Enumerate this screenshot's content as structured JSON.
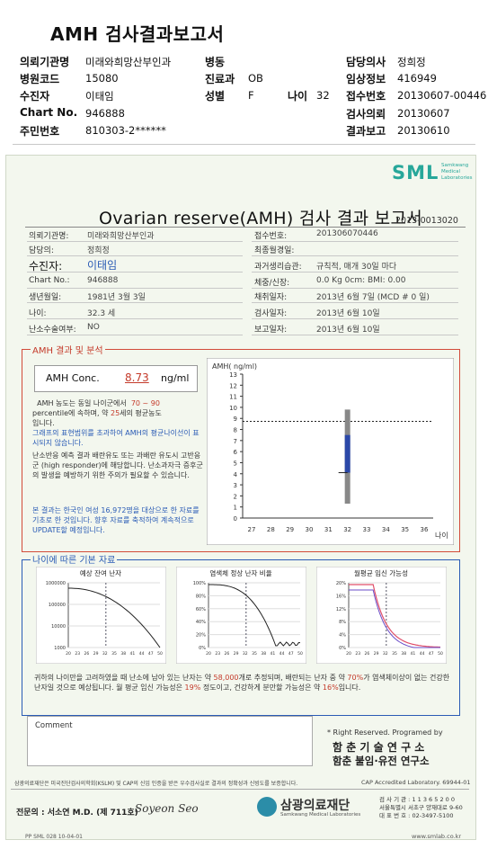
{
  "header": {
    "title": "AMH 검사결과보고서",
    "rows": [
      [
        {
          "l": "의뢰기관명",
          "v": "미래와희망산부인과"
        },
        {
          "l": "병동",
          "v": ""
        },
        {
          "l": "담당의사",
          "v": "정희정"
        }
      ],
      [
        {
          "l": "병원코드",
          "v": "15080"
        },
        {
          "l": "진료과",
          "v": "OB"
        },
        {
          "l": "임상정보",
          "v": "416949"
        }
      ],
      [
        {
          "l": "수진자",
          "v": "이태임"
        },
        {
          "l": "성별",
          "v": "F"
        },
        {
          "l": "접수번호",
          "v": "20130607-00446"
        }
      ],
      [
        {
          "l": "Chart No.",
          "v": "946888"
        },
        {
          "l": "",
          "v": ""
        },
        {
          "l": "검사의뢰",
          "v": "20130607"
        }
      ],
      [
        {
          "l": "주민번호",
          "v": "810303-2******"
        },
        {
          "l": "",
          "v": ""
        },
        {
          "l": "결과보고",
          "v": "20130610"
        }
      ]
    ],
    "age_label": "나이",
    "age_value": "32"
  },
  "report": {
    "logo": "SML",
    "logo_sub1": "Samkwang",
    "logo_sub2": "Medical",
    "logo_sub3": "Laboratories",
    "title": "Ovarian reserve(AMH) 검사 결과 보고서",
    "report_id": "2013-0013020",
    "left_info": [
      {
        "l": "의뢰기관명:",
        "v": "미래와희망산부인과"
      },
      {
        "l": "담당의:",
        "v": "정희정"
      },
      {
        "l": "수진자:",
        "v": "이태임"
      },
      {
        "l": "Chart No.:",
        "v": "946888"
      },
      {
        "l": "생년월일:",
        "v": "1981년 3월 3일"
      },
      {
        "l": "나이:",
        "v": "32.3 세"
      },
      {
        "l": "난소수술여부:",
        "v": "NO"
      }
    ],
    "right_info": [
      {
        "l": "접수번호:",
        "v": "201306070446"
      },
      {
        "l": "최종월경일:",
        "v": ""
      },
      {
        "l": "과거생리습관:",
        "v": "규칙적, 매개 30일 마다"
      },
      {
        "l": "체중/신장:",
        "v": "0.0 Kg      0cm:      BMI:    0.00"
      },
      {
        "l": "채취일자:",
        "v": "2013년 6월 7일   (MCD # 0 일)"
      },
      {
        "l": "검사일자:",
        "v": "2013년 6월 10일"
      },
      {
        "l": "보고일자:",
        "v": "2013년 6월 10일"
      }
    ]
  },
  "amh": {
    "section_title": "AMH 결과 및 분석",
    "conc_label": "AMH Conc.",
    "conc_value": "8.73",
    "conc_unit": "ng/ml",
    "text1a": "AMH 농도는 동일 나이군에서",
    "pct_range": "70 ~ 90",
    "text1b": "percentile에 속하며, 약",
    "equiv_age": "25",
    "text1c": "세의 평균농도",
    "text1d": "입니다.",
    "text2": "그래프의 표현범위를 초과하여 AMH의 평균나이선이 표시되지 않습니다.",
    "text3": "난소반응 예측 결과 배란유도 또는 과배란 유도시 고반응군 (high responder)에 해당합니다. 난소과자극 증후군의 발생을 예방하기 위한 주의가 필요할 수 있습니다.",
    "text4": "본 결과는 한국인 여성 16,972명을 대상으로 한 자료를 기초로 한 것입니다. 향후 자료를 축적하여 계속적으로 UPDATE할 예정입니다."
  },
  "chart_data": [
    {
      "type": "box",
      "ylabel": "AMH( ng/ml)",
      "xlabel": "나이",
      "ylim": [
        0,
        13
      ],
      "xticks": [
        27,
        28,
        29,
        30,
        31,
        32,
        33,
        34,
        35,
        36
      ],
      "yticks": [
        0,
        1,
        2,
        3,
        4,
        5,
        6,
        7,
        8,
        9,
        10,
        11,
        12,
        13
      ],
      "patient_age": 32,
      "patient_amh": 8.73,
      "whisker_low": 1.3,
      "q1": 4.1,
      "q3": 7.5,
      "whisker_high": 9.8
    },
    {
      "type": "line",
      "title": "예상 잔여 난자",
      "xticks": [
        20,
        23,
        26,
        29,
        32,
        35,
        38,
        41,
        44,
        47,
        50
      ],
      "yticks": [
        "1000000",
        "100000",
        "10000",
        "1000"
      ],
      "marker_age": 32.3
    },
    {
      "type": "line",
      "title": "염색체 정상 난자 비율",
      "xticks": [
        20,
        23,
        26,
        29,
        32,
        35,
        38,
        41,
        44,
        47,
        50
      ],
      "yticks": [
        "100%",
        "80%",
        "60%",
        "40%",
        "20%",
        "0%"
      ],
      "marker_age": 32.3
    },
    {
      "type": "line",
      "title": "월평균 임신 가능성",
      "legend": [
        "임신",
        "출산"
      ],
      "xticks": [
        20,
        23,
        26,
        29,
        32,
        35,
        38,
        41,
        44,
        47,
        50
      ],
      "yticks": [
        "20%",
        "16%",
        "12%",
        "8%",
        "4%",
        "0%"
      ],
      "marker_age": 32.3
    }
  ],
  "age_section": {
    "title": "나이에 따른 기본 자료",
    "summary_a": "귀하의 나이만을 고려하였을 때 난소에 남아 있는 난자는 약",
    "eggs": "58,000",
    "summary_b": "개로 추정되며, 배란되는 난자 중",
    "summary_c": "약",
    "normal_pct": "70%",
    "summary_d": "가 염색체이상이 없는 건강한 난자일 것으로 예상됩니다. 월 평균 임신 가능성은",
    "preg_pct": "19%",
    "summary_e": "정도이고, 건강하게 분만할 가능성은 약",
    "birth_pct": "16%",
    "summary_f": "입니다."
  },
  "comment": {
    "label": "Comment",
    "rights": "* Right Reserved. Programed by",
    "org1": "함 춘 기 술 연 구 소",
    "org2": "함춘 불임·유전 연구소"
  },
  "footer": {
    "cert": "삼광의료재단은 미국진단검사의학회(KSLM) 및 CAP의 신임 인증을 받은 우수검사실로 결과의 정확성과 신빙도를 보증합니다.",
    "cap": "CAP  Accredited  Laboratory.  69944-01",
    "doctor": "전문의 : 서소연 M.D. (제 711호)",
    "signature": "Soyeon Seo",
    "foundation": "삼광의료재단",
    "foundation_en": "Samkwang Medical Laboratories",
    "contact1": "검 사 기 관 : 1 1 3 6 5 2 0 0",
    "contact2": "서울특별시 서초구 양재대로 9-60",
    "contact3": "대 표 번 호 : 02-3497-5100",
    "web": "www.smlab.co.kr",
    "code": "PP SML 028 10-04-01"
  }
}
